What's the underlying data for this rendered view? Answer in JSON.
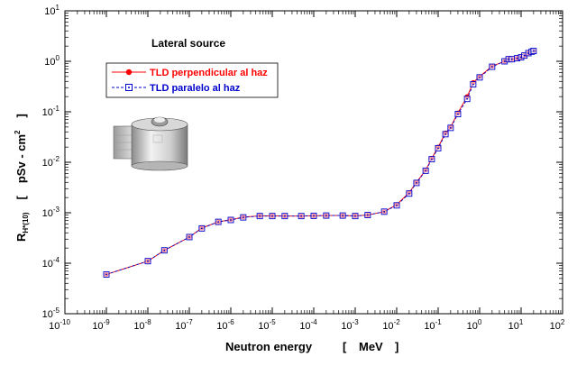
{
  "chart_data": {
    "type": "line",
    "title": "Lateral source",
    "xlabel": {
      "main": "Neutron energy",
      "bracket_open": "[",
      "unit": "MeV",
      "bracket_close": "]"
    },
    "ylabel": {
      "main": "R",
      "sub": "H*(10)",
      "bracket_open": "[",
      "unit_pre": "pSv - cm",
      "unit_sup": "2",
      "bracket_close": "]"
    },
    "xscale": "log",
    "yscale": "log",
    "xlim": [
      1e-10,
      100
    ],
    "ylim": [
      1e-05,
      10
    ],
    "xtick_labels": [
      {
        "base": "10",
        "exp": "-10",
        "v": -10
      },
      {
        "base": "10",
        "exp": "-9",
        "v": -9
      },
      {
        "base": "10",
        "exp": "-8",
        "v": -8
      },
      {
        "base": "10",
        "exp": "-7",
        "v": -7
      },
      {
        "base": "10",
        "exp": "-6",
        "v": -6
      },
      {
        "base": "10",
        "exp": "-5",
        "v": -5
      },
      {
        "base": "10",
        "exp": "-4",
        "v": -4
      },
      {
        "base": "10",
        "exp": "-3",
        "v": -3
      },
      {
        "base": "10",
        "exp": "-2",
        "v": -2
      },
      {
        "base": "10",
        "exp": "-1",
        "v": -1
      },
      {
        "base": "10",
        "exp": "0",
        "v": 0
      },
      {
        "base": "10",
        "exp": "1",
        "v": 1
      },
      {
        "base": "10",
        "exp": "2",
        "v": 2
      }
    ],
    "ytick_labels": [
      {
        "base": "10",
        "exp": "-5",
        "v": -5
      },
      {
        "base": "10",
        "exp": "-4",
        "v": -4
      },
      {
        "base": "10",
        "exp": "-3",
        "v": -3
      },
      {
        "base": "10",
        "exp": "-2",
        "v": -2
      },
      {
        "base": "10",
        "exp": "-1",
        "v": -1
      },
      {
        "base": "10",
        "exp": "0",
        "v": 0
      },
      {
        "base": "10",
        "exp": "1",
        "v": 1
      }
    ],
    "grid": false,
    "legend": {
      "placement": "upper-left"
    },
    "series": [
      {
        "name": "TLD perpendicular al haz",
        "color": "#ff0000",
        "marker": "filled-circle",
        "x": [
          1e-09,
          1e-08,
          2.5e-08,
          1e-07,
          2e-07,
          5e-07,
          1e-06,
          2e-06,
          5e-06,
          1e-05,
          2e-05,
          5e-05,
          0.0001,
          0.0002,
          0.0005,
          0.001,
          0.002,
          0.005,
          0.01,
          0.02,
          0.03,
          0.05,
          0.07,
          0.1,
          0.15,
          0.2,
          0.3,
          0.5,
          0.7,
          1,
          2,
          4,
          5,
          6,
          8,
          10,
          12,
          15,
          18,
          20
        ],
        "y": [
          6e-05,
          0.00011,
          0.00018,
          0.00033,
          0.0005,
          0.00066,
          0.00073,
          0.00082,
          0.00087,
          0.00087,
          0.00086,
          0.00086,
          0.00087,
          0.00088,
          0.00088,
          0.00087,
          0.0009,
          0.00105,
          0.00145,
          0.0025,
          0.004,
          0.007,
          0.012,
          0.02,
          0.038,
          0.05,
          0.095,
          0.2,
          0.38,
          0.5,
          0.8,
          1.0,
          1.1,
          1.1,
          1.15,
          1.2,
          1.3,
          1.45,
          1.55,
          1.6
        ]
      },
      {
        "name": "TLD paralelo al haz",
        "color": "#0000cc",
        "marker": "open-square-dot",
        "x": [
          1e-09,
          1e-08,
          2.5e-08,
          1e-07,
          2e-07,
          5e-07,
          1e-06,
          2e-06,
          5e-06,
          1e-05,
          2e-05,
          5e-05,
          0.0001,
          0.0002,
          0.0005,
          0.001,
          0.002,
          0.005,
          0.01,
          0.02,
          0.03,
          0.05,
          0.07,
          0.1,
          0.15,
          0.2,
          0.3,
          0.5,
          0.7,
          1,
          2,
          4,
          5,
          6,
          8,
          10,
          12,
          15,
          18,
          20
        ],
        "y": [
          6e-05,
          0.00011,
          0.00018,
          0.00033,
          0.00049,
          0.00066,
          0.00072,
          0.00081,
          0.00086,
          0.00086,
          0.00086,
          0.00086,
          0.00087,
          0.00088,
          0.00088,
          0.00086,
          0.0009,
          0.00105,
          0.0014,
          0.0024,
          0.0039,
          0.0068,
          0.0115,
          0.019,
          0.036,
          0.048,
          0.09,
          0.18,
          0.35,
          0.48,
          0.78,
          1.0,
          1.1,
          1.1,
          1.15,
          1.2,
          1.3,
          1.45,
          1.55,
          1.6
        ]
      }
    ],
    "inset_icon": "tld-dosimeter-cylinder-icon"
  }
}
